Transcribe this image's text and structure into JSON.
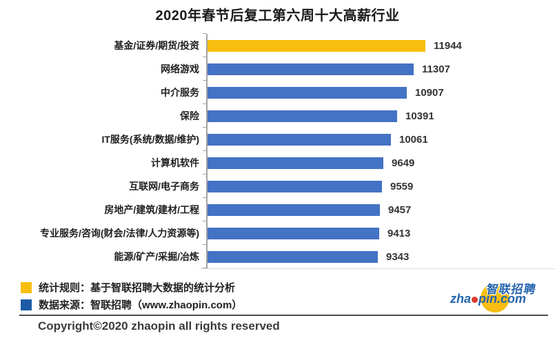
{
  "chart_data": {
    "type": "bar",
    "orientation": "horizontal",
    "title": "2020年春节后复工第六周十大高薪行业",
    "categories": [
      "基金/证券/期货/投资",
      "网络游戏",
      "中介服务",
      "保险",
      "IT服务(系统/数据/维护)",
      "计算机软件",
      "互联网/电子商务",
      "房地产/建筑/建材/工程",
      "专业服务/咨询(财会/法律/人力资源等)",
      "能源/矿产/采掘/冶炼"
    ],
    "values": [
      11944,
      11307,
      10907,
      10391,
      10061,
      9649,
      9559,
      9457,
      9413,
      9343
    ],
    "xlabel": "",
    "ylabel": "",
    "value_labels_shown": true,
    "grid": false,
    "bar_color": "#4472C4",
    "highlight_index": 0,
    "highlight_color": "#F7BE0D",
    "axis_color": "#A3A3A3",
    "value_label_color": "#333333"
  },
  "legend": {
    "items": [
      {
        "swatch_color": "#F7BE0D",
        "label": "统计规则：基于智联招聘大数据的统计分析"
      },
      {
        "swatch_color": "#1C5AA6",
        "label": "数据来源：智联招聘（www.zhaopin.com）"
      }
    ]
  },
  "logo": {
    "cn_text": "智联招聘",
    "url_prefix": "zha",
    "url_suffix": "pin.com",
    "brand_blue": "#2464AE",
    "brand_yellow": "#F7BD13",
    "dot_red": "#D93A2B"
  },
  "footer": {
    "copyright": "Copyright©2020 zhaopin all rights reserved"
  }
}
